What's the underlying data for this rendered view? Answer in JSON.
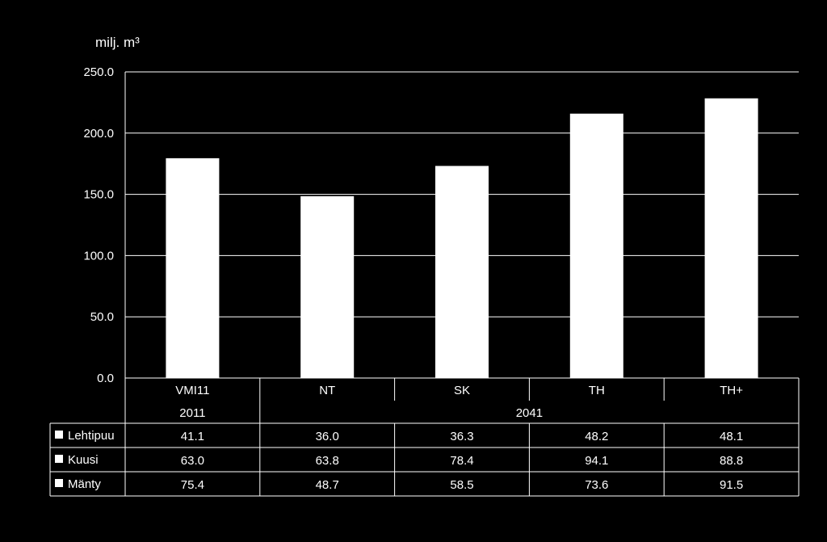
{
  "chart_data": {
    "type": "bar",
    "title": "",
    "ylabel": "milj. m³",
    "xlabel": "",
    "ylim": [
      0,
      250
    ],
    "yticks": [
      "0.0",
      "50.0",
      "100.0",
      "150.0",
      "200.0",
      "250.0"
    ],
    "grid": true,
    "bar_color": "#ffffff",
    "categories": [
      "VMI11",
      "NT",
      "SK",
      "TH",
      "TH+"
    ],
    "category_groups": [
      {
        "label": "2011",
        "span": 1
      },
      {
        "label": "2041",
        "span": 4
      }
    ],
    "values": [
      179.5,
      148.5,
      173.2,
      215.9,
      228.4
    ],
    "series": [
      {
        "name": "Lehtipuu",
        "values": [
          41.1,
          36.0,
          36.3,
          48.2,
          48.1
        ],
        "labels": [
          "41.1",
          "36.0",
          "36.3",
          "48.2",
          "48.1"
        ]
      },
      {
        "name": "Kuusi",
        "values": [
          63.0,
          63.8,
          78.4,
          94.1,
          88.8
        ],
        "labels": [
          "63.0",
          "63.8",
          "78.4",
          "94.1",
          "88.8"
        ]
      },
      {
        "name": "Mänty",
        "values": [
          75.4,
          48.7,
          58.5,
          73.6,
          91.5
        ],
        "labels": [
          "75.4",
          "48.7",
          "58.5",
          "73.6",
          "91.5"
        ]
      }
    ]
  }
}
